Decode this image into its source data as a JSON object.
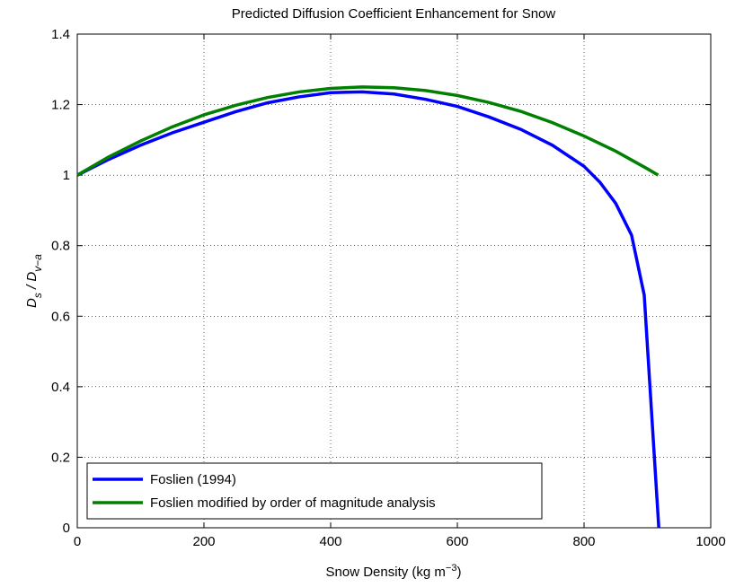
{
  "chart_data": {
    "type": "line",
    "title": "Predicted Diffusion Coefficient Enhancement for Snow",
    "xlabel": [
      "Snow Density (kg m",
      "−3",
      ")"
    ],
    "ylabel": [
      "D",
      "s",
      " / D",
      "v−a"
    ],
    "xlim": [
      0,
      1000
    ],
    "ylim": [
      0,
      1.4
    ],
    "xticks": [
      0,
      200,
      400,
      600,
      800,
      1000
    ],
    "yticks": [
      0,
      0.2,
      0.4,
      0.6,
      0.8,
      1,
      1.2,
      1.4
    ],
    "grid": true,
    "legend": "lower left",
    "series": [
      {
        "name": "Foslien (1994)",
        "color": "#0000ff",
        "x": [
          0,
          50,
          100,
          150,
          200,
          250,
          300,
          350,
          400,
          450,
          500,
          550,
          600,
          650,
          700,
          750,
          800,
          825,
          850,
          875,
          895,
          918
        ],
        "values": [
          1.0,
          1.045,
          1.085,
          1.12,
          1.15,
          1.18,
          1.205,
          1.222,
          1.234,
          1.236,
          1.23,
          1.215,
          1.195,
          1.165,
          1.13,
          1.085,
          1.025,
          0.98,
          0.92,
          0.83,
          0.66,
          0
        ]
      },
      {
        "name": "Foslien modified by order of magnitude analysis",
        "color": "#008000",
        "x": [
          0,
          50,
          100,
          150,
          200,
          250,
          300,
          350,
          400,
          450,
          500,
          550,
          600,
          650,
          700,
          750,
          800,
          850,
          900,
          917
        ],
        "values": [
          1.0,
          1.052,
          1.097,
          1.137,
          1.171,
          1.198,
          1.22,
          1.236,
          1.246,
          1.25,
          1.248,
          1.24,
          1.226,
          1.206,
          1.181,
          1.149,
          1.111,
          1.068,
          1.018,
          1.0
        ]
      }
    ]
  }
}
